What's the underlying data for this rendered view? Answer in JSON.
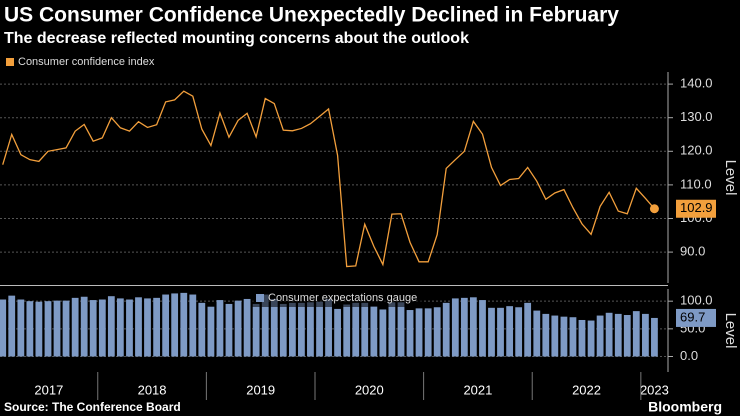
{
  "title": "US Consumer Confidence Unexpectedly Declined in February",
  "subtitle": "The decrease reflected mounting concerns about the outlook",
  "source": "Source: The Conference Board",
  "brand": "Bloomberg",
  "chart_data": [
    {
      "type": "line",
      "ylabel": "Level",
      "series": [
        {
          "name": "Consumer confidence index",
          "color": "#f29f3c",
          "values": [
            116,
            125,
            119,
            117.5,
            117,
            120,
            120.5,
            121,
            126,
            128,
            123,
            124,
            130,
            127,
            126,
            128.8,
            127.1,
            127.9,
            134.7,
            135.3,
            137.9,
            136.4,
            126.6,
            121.7,
            131.4,
            124.2,
            129.2,
            131.3,
            124.3,
            135.7,
            134.2,
            126.3,
            126.1,
            126.8,
            128.2,
            130.4,
            132.6,
            118.8,
            85.7,
            85.9,
            98.3,
            91.7,
            86.3,
            101.3,
            101.4,
            92.9,
            87.1,
            87.1,
            95.2,
            114.9,
            117.5,
            120,
            128.9,
            125.1,
            115.2,
            109.8,
            111.6,
            111.9,
            115.2,
            111.1,
            105.7,
            107.6,
            108.6,
            103.2,
            98.4,
            95.3,
            103.6,
            107.8,
            102.2,
            101.4,
            109,
            106,
            102.9
          ]
        }
      ],
      "x": [
        2017.125,
        2017.208,
        2017.292,
        2017.375,
        2017.458,
        2017.542,
        2017.625,
        2017.708,
        2017.792,
        2017.875,
        2017.958,
        2018.042,
        2018.125,
        2018.208,
        2018.292,
        2018.375,
        2018.458,
        2018.542,
        2018.625,
        2018.708,
        2018.792,
        2018.875,
        2018.958,
        2019.042,
        2019.125,
        2019.208,
        2019.292,
        2019.375,
        2019.458,
        2019.542,
        2019.625,
        2019.708,
        2019.792,
        2019.875,
        2019.958,
        2020.042,
        2020.125,
        2020.208,
        2020.292,
        2020.375,
        2020.458,
        2020.542,
        2020.625,
        2020.708,
        2020.792,
        2020.875,
        2020.958,
        2021.042,
        2021.125,
        2021.208,
        2021.292,
        2021.375,
        2021.458,
        2021.542,
        2021.625,
        2021.708,
        2021.792,
        2021.875,
        2021.958,
        2022.042,
        2022.125,
        2022.208,
        2022.292,
        2022.375,
        2022.458,
        2022.542,
        2022.625,
        2022.708,
        2022.792,
        2022.875,
        2022.958,
        2023.042,
        2023.125
      ],
      "xlim": [
        2017.1,
        2023.25
      ],
      "ylim": [
        80.8,
        143.6
      ],
      "yticks": [
        {
          "value": 90,
          "label": "90.0"
        },
        {
          "value": 100,
          "label": "100.0"
        },
        {
          "value": 110,
          "label": "110.0"
        },
        {
          "value": 120,
          "label": "120.0"
        },
        {
          "value": 130,
          "label": "130.0"
        },
        {
          "value": 140,
          "label": "140.0"
        }
      ],
      "grid": true
    },
    {
      "type": "bar",
      "ylabel": "Level",
      "series": [
        {
          "name": "Consumer expectations gauge",
          "color": "#7e9ac5",
          "values": [
            103,
            110,
            103,
            100,
            99,
            100,
            101,
            101,
            106,
            108,
            102,
            103,
            109,
            105,
            103,
            107,
            105,
            106,
            112,
            114,
            115,
            112,
            97,
            90,
            102,
            95,
            101,
            104,
            95,
            112,
            104,
            95,
            97,
            97,
            98,
            99,
            104,
            86,
            94,
            97,
            97,
            91,
            85,
            98,
            98,
            84,
            87,
            87,
            89,
            97,
            105,
            106,
            107,
            102,
            88,
            88,
            91,
            89,
            97,
            83,
            77,
            74,
            72,
            71,
            66,
            65,
            74,
            79,
            77,
            75,
            82,
            77,
            69.7
          ]
        }
      ],
      "x": [
        2017.125,
        2017.208,
        2017.292,
        2017.375,
        2017.458,
        2017.542,
        2017.625,
        2017.708,
        2017.792,
        2017.875,
        2017.958,
        2018.042,
        2018.125,
        2018.208,
        2018.292,
        2018.375,
        2018.458,
        2018.542,
        2018.625,
        2018.708,
        2018.792,
        2018.875,
        2018.958,
        2019.042,
        2019.125,
        2019.208,
        2019.292,
        2019.375,
        2019.458,
        2019.542,
        2019.625,
        2019.708,
        2019.792,
        2019.875,
        2019.958,
        2020.042,
        2020.125,
        2020.208,
        2020.292,
        2020.375,
        2020.458,
        2020.542,
        2020.625,
        2020.708,
        2020.792,
        2020.875,
        2020.958,
        2021.042,
        2021.125,
        2021.208,
        2021.292,
        2021.375,
        2021.458,
        2021.542,
        2021.625,
        2021.708,
        2021.792,
        2021.875,
        2021.958,
        2022.042,
        2022.125,
        2022.208,
        2022.292,
        2022.375,
        2022.458,
        2022.542,
        2022.625,
        2022.708,
        2022.792,
        2022.875,
        2022.958,
        2023.042,
        2023.125
      ],
      "xlim": [
        2017.1,
        2023.25
      ],
      "xticks": [
        {
          "value": 2017,
          "label": "2017"
        },
        {
          "value": 2018,
          "label": "2018"
        },
        {
          "value": 2019,
          "label": "2019"
        },
        {
          "value": 2020,
          "label": "2020"
        },
        {
          "value": 2021,
          "label": "2021"
        },
        {
          "value": 2022,
          "label": "2022"
        },
        {
          "value": 2023,
          "label": "2023"
        }
      ],
      "ylim": [
        -28,
        122
      ],
      "yticks": [
        {
          "value": 0,
          "label": "0.0"
        },
        {
          "value": 50,
          "label": "50.0"
        },
        {
          "value": 100,
          "label": "100.0"
        }
      ],
      "grid": true
    }
  ]
}
